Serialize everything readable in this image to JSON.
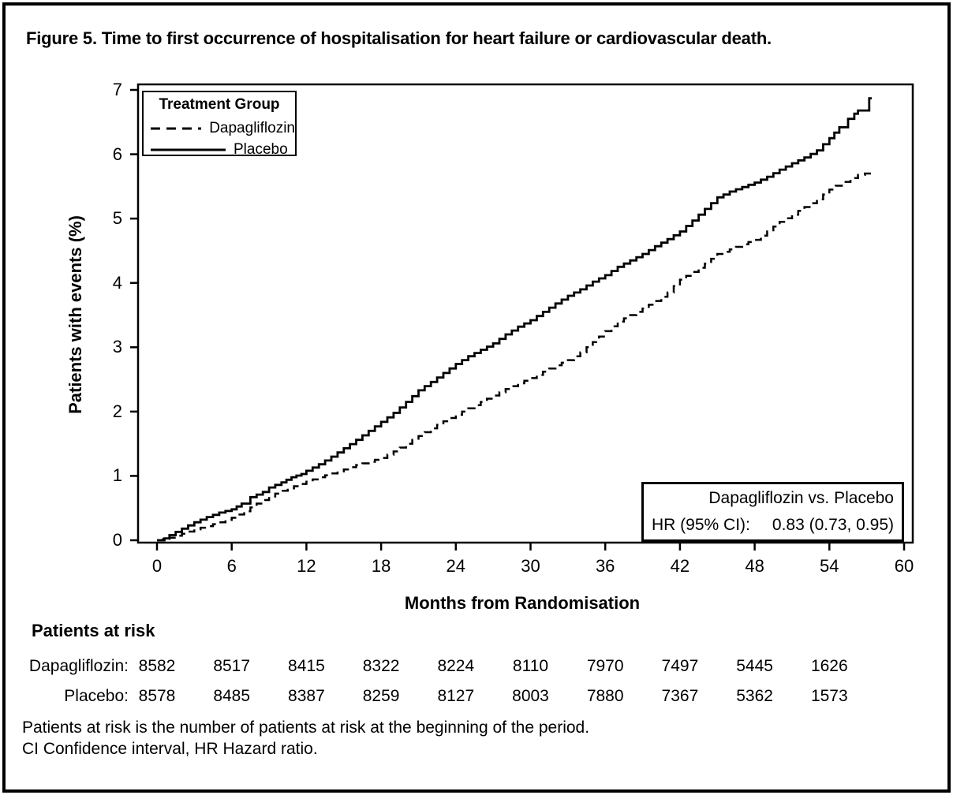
{
  "figure": {
    "title": "Figure 5. Time to first occurrence of hospitalisation for heart failure or cardiovascular death.",
    "footnotes": [
      "Patients at risk is the number of patients at risk at the beginning of the period.",
      "CI Confidence interval, HR Hazard ratio."
    ]
  },
  "chart_data": {
    "type": "line",
    "subtype": "kaplan-meier-cumulative-incidence-steps",
    "xlabel": "Months from Randomisation",
    "ylabel": "Patients with events (%)",
    "xlim": [
      0,
      60
    ],
    "ylim": [
      0,
      7
    ],
    "xticks": [
      0,
      6,
      12,
      18,
      24,
      30,
      36,
      42,
      48,
      54,
      60
    ],
    "yticks": [
      0,
      1,
      2,
      3,
      4,
      5,
      6,
      7
    ],
    "grid": false,
    "legend": {
      "title": "Treatment Group",
      "position": "top-left",
      "entries": [
        {
          "label": "Dapagliflozin",
          "style": "dashed"
        },
        {
          "label": "Placebo",
          "style": "solid"
        }
      ]
    },
    "series": [
      {
        "name": "Placebo",
        "line": "solid",
        "points": [
          [
            0,
            0
          ],
          [
            0.6,
            0.03
          ],
          [
            1,
            0.08
          ],
          [
            2,
            0.18
          ],
          [
            3,
            0.28
          ],
          [
            4,
            0.36
          ],
          [
            5,
            0.43
          ],
          [
            6,
            0.48
          ],
          [
            6.8,
            0.57
          ],
          [
            7.5,
            0.67
          ],
          [
            8.5,
            0.75
          ],
          [
            9,
            0.82
          ],
          [
            10,
            0.9
          ],
          [
            10.8,
            0.98
          ],
          [
            11.6,
            1.03
          ],
          [
            12,
            1.08
          ],
          [
            13,
            1.18
          ],
          [
            14,
            1.3
          ],
          [
            15,
            1.43
          ],
          [
            16,
            1.56
          ],
          [
            17,
            1.7
          ],
          [
            18,
            1.84
          ],
          [
            19,
            1.98
          ],
          [
            20,
            2.15
          ],
          [
            21,
            2.33
          ],
          [
            22,
            2.46
          ],
          [
            23,
            2.6
          ],
          [
            24,
            2.74
          ],
          [
            25,
            2.86
          ],
          [
            26,
            2.96
          ],
          [
            27,
            3.06
          ],
          [
            28,
            3.2
          ],
          [
            29,
            3.32
          ],
          [
            30,
            3.42
          ],
          [
            31,
            3.55
          ],
          [
            32,
            3.68
          ],
          [
            33,
            3.8
          ],
          [
            34,
            3.9
          ],
          [
            35,
            4.02
          ],
          [
            36,
            4.12
          ],
          [
            37,
            4.25
          ],
          [
            38,
            4.35
          ],
          [
            39,
            4.45
          ],
          [
            40,
            4.57
          ],
          [
            41,
            4.68
          ],
          [
            42,
            4.8
          ],
          [
            43,
            4.97
          ],
          [
            44,
            5.15
          ],
          [
            45,
            5.33
          ],
          [
            46,
            5.42
          ],
          [
            47,
            5.49
          ],
          [
            48,
            5.56
          ],
          [
            49,
            5.65
          ],
          [
            50,
            5.76
          ],
          [
            51,
            5.86
          ],
          [
            52,
            5.95
          ],
          [
            53,
            6.06
          ],
          [
            54,
            6.25
          ],
          [
            54.8,
            6.42
          ],
          [
            55.5,
            6.55
          ],
          [
            56,
            6.63
          ],
          [
            56.3,
            6.68
          ],
          [
            57.1,
            6.68
          ],
          [
            57.2,
            6.87
          ],
          [
            57.4,
            6.87
          ]
        ]
      },
      {
        "name": "Dapagliflozin",
        "line": "dashed",
        "points": [
          [
            0,
            0
          ],
          [
            1,
            0.04
          ],
          [
            2,
            0.1
          ],
          [
            3,
            0.17
          ],
          [
            4,
            0.22
          ],
          [
            5,
            0.28
          ],
          [
            6,
            0.35
          ],
          [
            7,
            0.45
          ],
          [
            8,
            0.57
          ],
          [
            9,
            0.68
          ],
          [
            10,
            0.77
          ],
          [
            11,
            0.84
          ],
          [
            12,
            0.91
          ],
          [
            13,
            0.98
          ],
          [
            14,
            1.04
          ],
          [
            15,
            1.1
          ],
          [
            16,
            1.17
          ],
          [
            17,
            1.22
          ],
          [
            18,
            1.28
          ],
          [
            19,
            1.38
          ],
          [
            20,
            1.5
          ],
          [
            21,
            1.62
          ],
          [
            22,
            1.74
          ],
          [
            23,
            1.85
          ],
          [
            24,
            1.95
          ],
          [
            25,
            2.05
          ],
          [
            26,
            2.15
          ],
          [
            27,
            2.25
          ],
          [
            28,
            2.35
          ],
          [
            29,
            2.44
          ],
          [
            30,
            2.52
          ],
          [
            31,
            2.62
          ],
          [
            32,
            2.72
          ],
          [
            33,
            2.8
          ],
          [
            34,
            2.92
          ],
          [
            35,
            3.08
          ],
          [
            36,
            3.25
          ],
          [
            37,
            3.4
          ],
          [
            38,
            3.5
          ],
          [
            39,
            3.6
          ],
          [
            40,
            3.72
          ],
          [
            41,
            3.85
          ],
          [
            42,
            4.05
          ],
          [
            43,
            4.17
          ],
          [
            44,
            4.3
          ],
          [
            45,
            4.45
          ],
          [
            46,
            4.52
          ],
          [
            47,
            4.6
          ],
          [
            48,
            4.67
          ],
          [
            49,
            4.8
          ],
          [
            50,
            4.95
          ],
          [
            51,
            5.06
          ],
          [
            52,
            5.18
          ],
          [
            53,
            5.3
          ],
          [
            54,
            5.45
          ],
          [
            55,
            5.57
          ],
          [
            55.7,
            5.63
          ],
          [
            56.3,
            5.68
          ],
          [
            57.4,
            5.72
          ]
        ]
      }
    ],
    "annotation": {
      "line1": "Dapagliflozin vs. Placebo",
      "line2_label": "HR (95% CI):",
      "line2_value": "0.83 (0.73, 0.95)"
    }
  },
  "risk_table": {
    "title": "Patients at risk",
    "months": [
      0,
      6,
      12,
      18,
      24,
      30,
      36,
      42,
      48,
      54
    ],
    "rows": [
      {
        "label": "Dapagliflozin:",
        "values": [
          "8582",
          "8517",
          "8415",
          "8322",
          "8224",
          "8110",
          "7970",
          "7497",
          "5445",
          "1626"
        ]
      },
      {
        "label": "Placebo:",
        "values": [
          "8578",
          "8485",
          "8387",
          "8259",
          "8127",
          "8003",
          "7880",
          "7367",
          "5362",
          "1573"
        ]
      }
    ]
  },
  "colors": {
    "line": "#000000",
    "text": "#000000",
    "background": "#ffffff"
  }
}
